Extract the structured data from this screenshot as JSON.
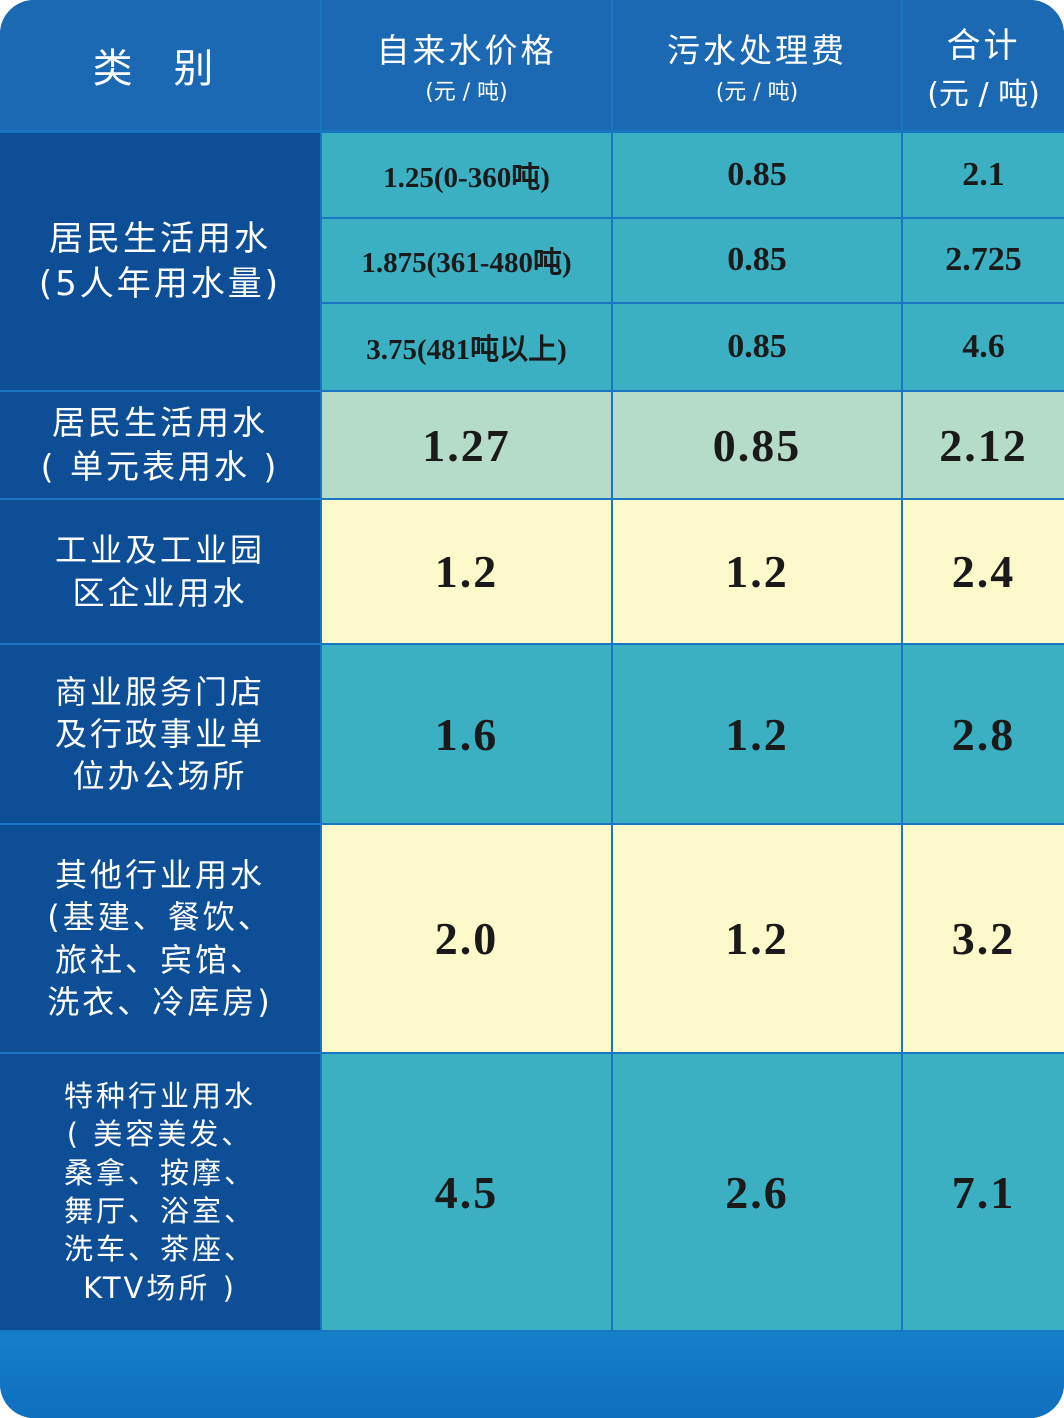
{
  "header": {
    "category": "类 别",
    "columns": [
      {
        "title": "自来水价格",
        "unit": "(元 / 吨)"
      },
      {
        "title": "污水处理费",
        "unit": "(元 / 吨)"
      },
      {
        "title": "合计",
        "unit": "(元 / 吨)"
      }
    ]
  },
  "rows": [
    {
      "label": [
        "居民生活用水",
        "(5人年用水量)"
      ],
      "cells": [
        [
          "1.25(0-360吨)",
          "0.85",
          "2.1"
        ],
        [
          "1.875(361-480吨)",
          "0.85",
          "2.725"
        ],
        [
          "3.75(481吨以上)",
          "0.85",
          "4.6"
        ]
      ]
    },
    {
      "label": [
        "居民生活用水",
        "( 单元表用水 )"
      ],
      "cells": [
        [
          "1.27",
          "0.85",
          "2.12"
        ]
      ]
    },
    {
      "label": [
        "工业及工业园",
        "区企业用水"
      ],
      "cells": [
        [
          "1.2",
          "1.2",
          "2.4"
        ]
      ]
    },
    {
      "label": [
        "商业服务门店",
        "及行政事业单",
        "位办公场所"
      ],
      "cells": [
        [
          "1.6",
          "1.2",
          "2.8"
        ]
      ]
    },
    {
      "label": [
        "其他行业用水",
        "(基建、餐饮、",
        "旅社、宾馆、",
        "洗衣、冷库房)"
      ],
      "cells": [
        [
          "2.0",
          "1.2",
          "3.2"
        ]
      ]
    },
    {
      "label": [
        "特种行业用水",
        "( 美容美发、",
        "桑拿、按摩、",
        "舞厅、浴室、",
        "洗车、茶座、",
        "KTV场所 )"
      ],
      "cells": [
        [
          "4.5",
          "2.6",
          "7.1"
        ]
      ]
    }
  ]
}
